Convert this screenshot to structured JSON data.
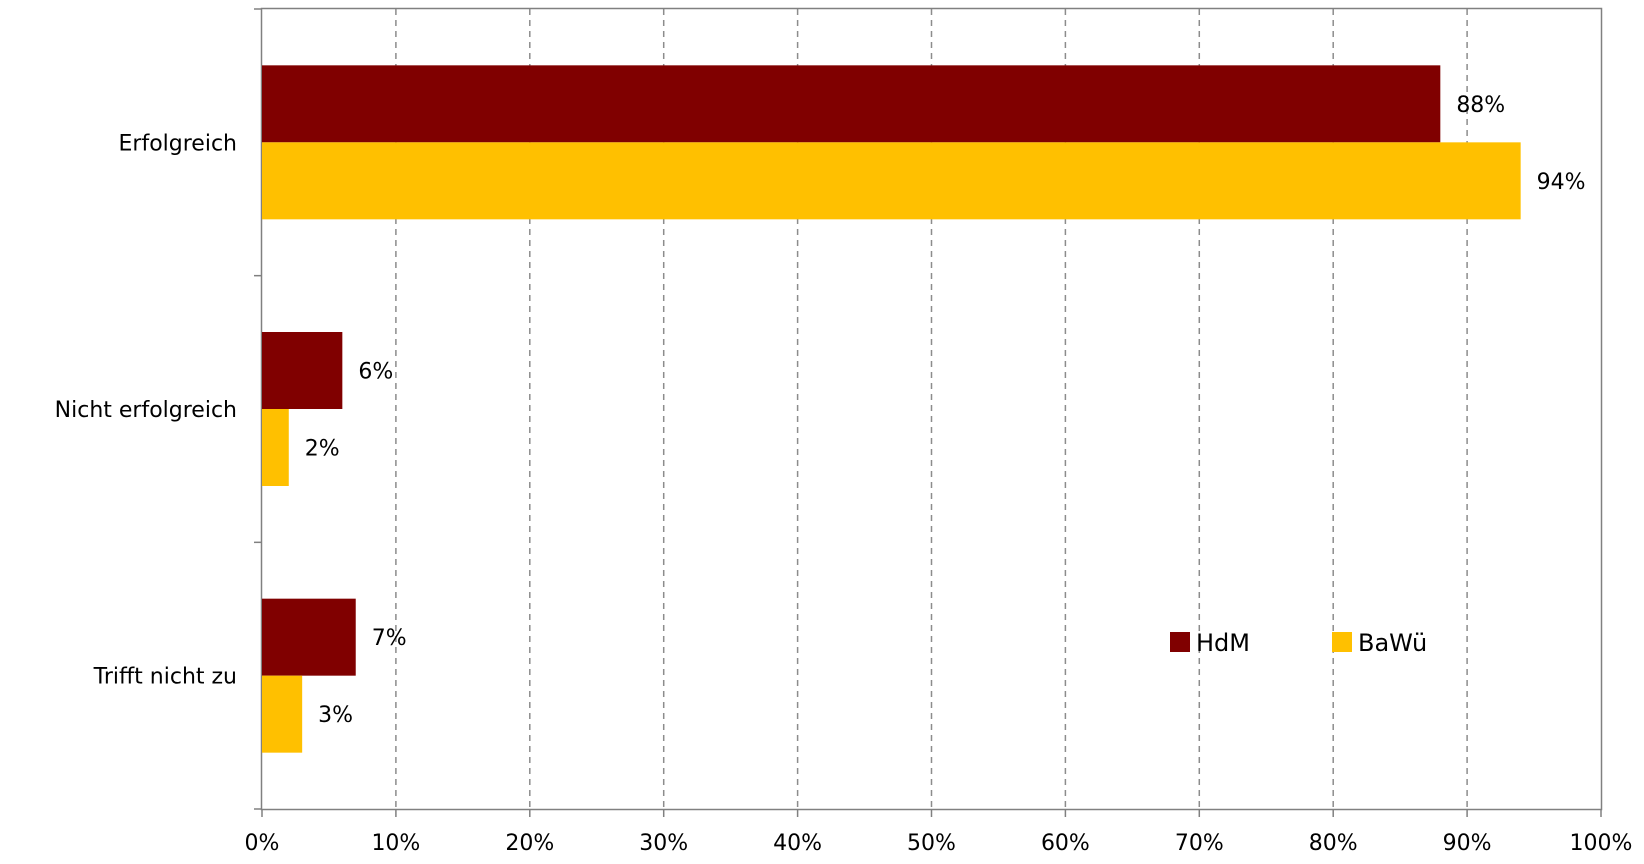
{
  "chart_data": {
    "type": "bar",
    "orientation": "horizontal",
    "categories": [
      "Erfolgreich",
      "Nicht erfolgreich",
      "Trifft nicht zu"
    ],
    "series": [
      {
        "name": "HdM",
        "values": [
          88,
          6,
          7
        ],
        "labels": [
          "88%",
          "6%",
          "7%"
        ],
        "color": "#800000"
      },
      {
        "name": "BaWü",
        "values": [
          94,
          2,
          3
        ],
        "labels": [
          "94%",
          "2%",
          "3%"
        ],
        "color": "#FFC000"
      }
    ],
    "xlim": [
      0,
      100
    ],
    "x_ticks": [
      0,
      10,
      20,
      30,
      40,
      50,
      60,
      70,
      80,
      90,
      100
    ],
    "x_tick_labels": [
      "0%",
      "10%",
      "20%",
      "30%",
      "40%",
      "50%",
      "60%",
      "70%",
      "80%",
      "90%",
      "100%"
    ],
    "grid": "vertical dashed",
    "legend_position": "lower-right"
  }
}
